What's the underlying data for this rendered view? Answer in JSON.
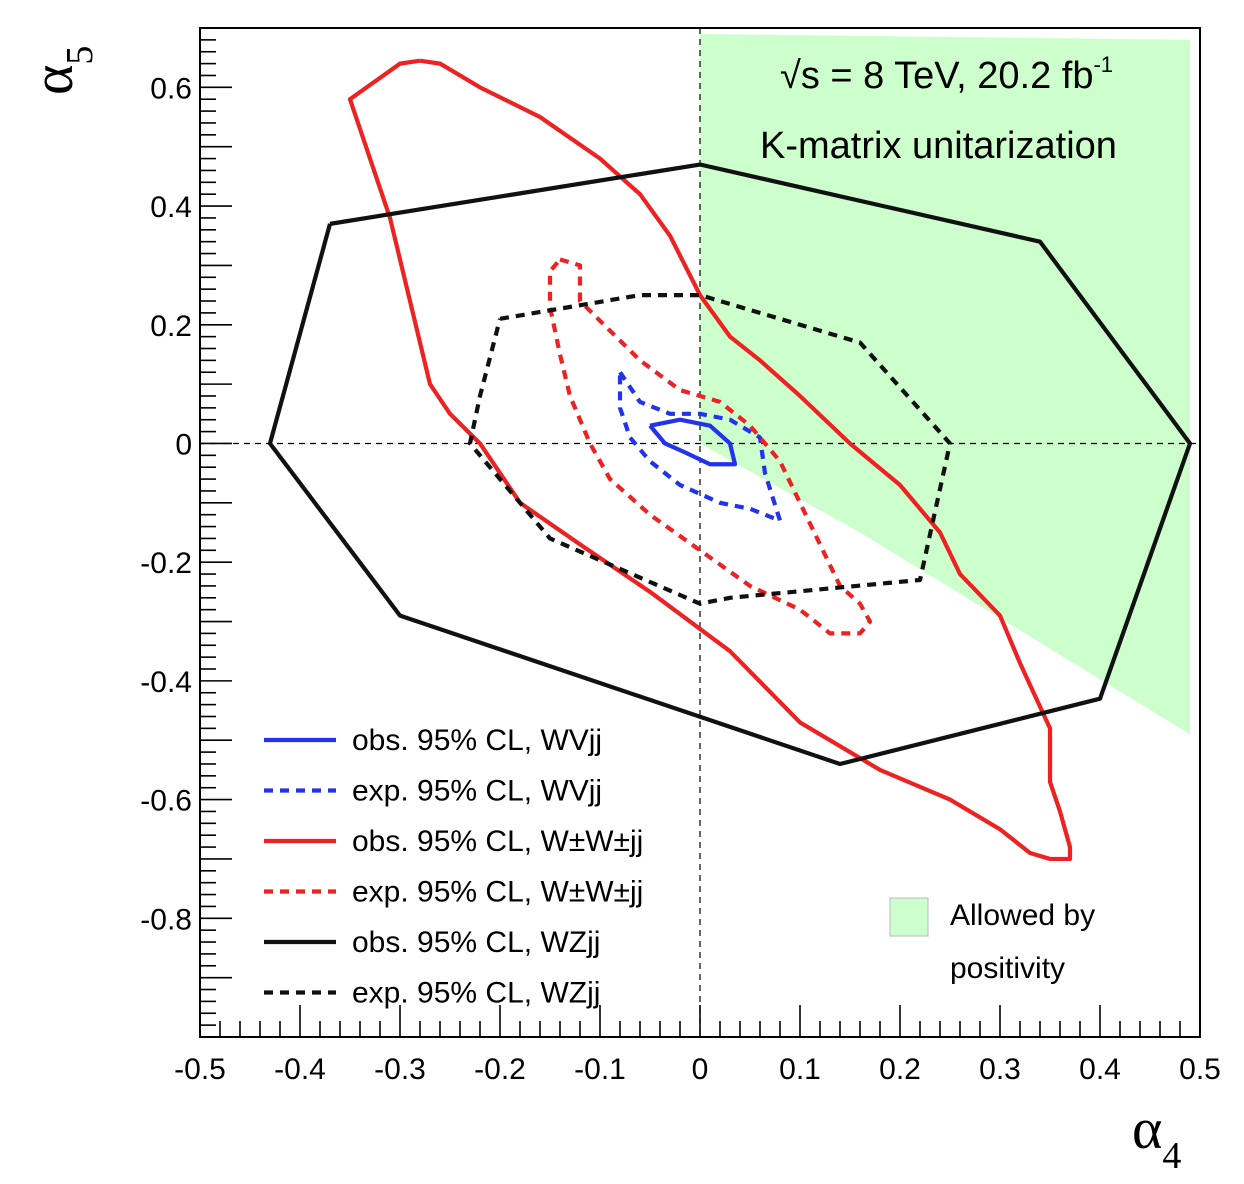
{
  "chart_data": {
    "type": "line",
    "title": "",
    "xlabel": "α",
    "xlabel_sub": "4",
    "ylabel": "α",
    "ylabel_sub": "5",
    "xlim": [
      -0.5,
      0.5
    ],
    "ylim": [
      -1.0,
      0.7
    ],
    "xticks": [
      {
        "v": -0.5,
        "label": "-0.5"
      },
      {
        "v": -0.4,
        "label": "-0.4"
      },
      {
        "v": -0.3,
        "label": "-0.3"
      },
      {
        "v": -0.2,
        "label": "-0.2"
      },
      {
        "v": -0.1,
        "label": "-0.1"
      },
      {
        "v": 0,
        "label": "0"
      },
      {
        "v": 0.1,
        "label": "0.1"
      },
      {
        "v": 0.2,
        "label": "0.2"
      },
      {
        "v": 0.3,
        "label": "0.3"
      },
      {
        "v": 0.4,
        "label": "0.4"
      },
      {
        "v": 0.5,
        "label": "0.5"
      }
    ],
    "yticks": [
      {
        "v": 0.6,
        "label": "0.6"
      },
      {
        "v": 0.4,
        "label": "0.4"
      },
      {
        "v": 0.2,
        "label": "0.2"
      },
      {
        "v": 0,
        "label": "0"
      },
      {
        "v": -0.2,
        "label": "-0.2"
      },
      {
        "v": -0.4,
        "label": "-0.4"
      },
      {
        "v": -0.6,
        "label": "-0.6"
      },
      {
        "v": -0.8,
        "label": "-0.8"
      }
    ],
    "annotations": {
      "energy_prefix": "√s = 8 TeV, 20.2 fb",
      "energy_sup": "-1",
      "method": "K-matrix unitarization",
      "allowed_line1": "Allowed by",
      "allowed_line2": "positivity"
    },
    "allowed_region": {
      "name": "Allowed by positivity",
      "color": "#ccffcc",
      "points": [
        [
          0.0,
          0.69
        ],
        [
          0.49,
          0.68
        ],
        [
          0.49,
          -0.49
        ],
        [
          0.16,
          -0.15
        ],
        [
          0.0,
          0.0
        ]
      ]
    },
    "series": [
      {
        "name": "obs. 95% CL, WVjj",
        "color": "#2233ee",
        "style": "solid",
        "points": [
          [
            -0.05,
            0.03
          ],
          [
            -0.02,
            0.04
          ],
          [
            0.01,
            0.03
          ],
          [
            0.03,
            0.0
          ],
          [
            0.035,
            -0.035
          ],
          [
            0.01,
            -0.035
          ],
          [
            -0.015,
            -0.015
          ],
          [
            -0.035,
            0.0
          ],
          [
            -0.05,
            0.03
          ]
        ]
      },
      {
        "name": "exp. 95% CL, WVjj",
        "color": "#2233ee",
        "style": "dashed",
        "points": [
          [
            -0.08,
            0.12
          ],
          [
            -0.06,
            0.07
          ],
          [
            -0.03,
            0.05
          ],
          [
            0.0,
            0.05
          ],
          [
            0.03,
            0.04
          ],
          [
            0.06,
            0.01
          ],
          [
            0.065,
            -0.05
          ],
          [
            0.08,
            -0.13
          ],
          [
            0.05,
            -0.11
          ],
          [
            0.02,
            -0.1
          ],
          [
            -0.02,
            -0.07
          ],
          [
            -0.05,
            -0.03
          ],
          [
            -0.07,
            0.01
          ],
          [
            -0.08,
            0.06
          ],
          [
            -0.08,
            0.12
          ]
        ]
      },
      {
        "name": "obs. 95% CL, W±W±jj",
        "color": "#ee2222",
        "style": "solid",
        "points": [
          [
            -0.28,
            0.645
          ],
          [
            -0.26,
            0.64
          ],
          [
            -0.22,
            0.6
          ],
          [
            -0.16,
            0.55
          ],
          [
            -0.1,
            0.48
          ],
          [
            -0.06,
            0.42
          ],
          [
            -0.03,
            0.35
          ],
          [
            0.0,
            0.25
          ],
          [
            0.03,
            0.18
          ],
          [
            0.06,
            0.14
          ],
          [
            0.1,
            0.08
          ],
          [
            0.15,
            0.0
          ],
          [
            0.2,
            -0.07
          ],
          [
            0.24,
            -0.15
          ],
          [
            0.26,
            -0.22
          ],
          [
            0.3,
            -0.29
          ],
          [
            0.32,
            -0.37
          ],
          [
            0.35,
            -0.48
          ],
          [
            0.35,
            -0.57
          ],
          [
            0.36,
            -0.62
          ],
          [
            0.37,
            -0.68
          ],
          [
            0.37,
            -0.7
          ],
          [
            0.35,
            -0.7
          ],
          [
            0.33,
            -0.69
          ],
          [
            0.3,
            -0.65
          ],
          [
            0.25,
            -0.6
          ],
          [
            0.18,
            -0.55
          ],
          [
            0.1,
            -0.47
          ],
          [
            0.03,
            -0.35
          ],
          [
            -0.05,
            -0.25
          ],
          [
            -0.12,
            -0.17
          ],
          [
            -0.18,
            -0.1
          ],
          [
            -0.22,
            0.0
          ],
          [
            -0.25,
            0.05
          ],
          [
            -0.27,
            0.1
          ],
          [
            -0.29,
            0.24
          ],
          [
            -0.31,
            0.38
          ],
          [
            -0.33,
            0.48
          ],
          [
            -0.35,
            0.58
          ],
          [
            -0.3,
            0.64
          ],
          [
            -0.28,
            0.645
          ]
        ]
      },
      {
        "name": "exp. 95% CL, W±W±jj",
        "color": "#ee2222",
        "style": "dashed",
        "points": [
          [
            -0.14,
            0.31
          ],
          [
            -0.12,
            0.3
          ],
          [
            -0.12,
            0.24
          ],
          [
            -0.09,
            0.19
          ],
          [
            -0.06,
            0.14
          ],
          [
            -0.02,
            0.09
          ],
          [
            0.02,
            0.07
          ],
          [
            0.05,
            0.03
          ],
          [
            0.08,
            -0.03
          ],
          [
            0.1,
            -0.1
          ],
          [
            0.12,
            -0.17
          ],
          [
            0.14,
            -0.24
          ],
          [
            0.16,
            -0.27
          ],
          [
            0.17,
            -0.3
          ],
          [
            0.16,
            -0.32
          ],
          [
            0.13,
            -0.32
          ],
          [
            0.1,
            -0.28
          ],
          [
            0.05,
            -0.24
          ],
          [
            0.0,
            -0.18
          ],
          [
            -0.05,
            -0.12
          ],
          [
            -0.09,
            -0.06
          ],
          [
            -0.11,
            0.0
          ],
          [
            -0.13,
            0.08
          ],
          [
            -0.14,
            0.15
          ],
          [
            -0.15,
            0.23
          ],
          [
            -0.15,
            0.29
          ],
          [
            -0.14,
            0.31
          ]
        ]
      },
      {
        "name": "obs. 95% CL, WZjj",
        "color": "#111111",
        "style": "solid",
        "points": [
          [
            -0.37,
            0.37
          ],
          [
            0.0,
            0.47
          ],
          [
            0.34,
            0.34
          ],
          [
            0.49,
            0.0
          ],
          [
            0.4,
            -0.43
          ],
          [
            0.14,
            -0.54
          ],
          [
            -0.3,
            -0.29
          ],
          [
            -0.43,
            0.0
          ],
          [
            -0.37,
            0.37
          ]
        ]
      },
      {
        "name": "exp. 95% CL, WZjj",
        "color": "#111111",
        "style": "dashed",
        "points": [
          [
            -0.2,
            0.21
          ],
          [
            -0.06,
            0.25
          ],
          [
            0.0,
            0.25
          ],
          [
            0.16,
            0.17
          ],
          [
            0.25,
            0.0
          ],
          [
            0.22,
            -0.23
          ],
          [
            0.03,
            -0.26
          ],
          [
            0.0,
            -0.27
          ],
          [
            -0.15,
            -0.16
          ],
          [
            -0.23,
            0.0
          ],
          [
            -0.22,
            0.08
          ],
          [
            -0.2,
            0.21
          ]
        ]
      }
    ],
    "legend": [
      {
        "label": "obs. 95% CL, WVjj",
        "color": "#2233ee",
        "style": "solid"
      },
      {
        "label": "exp. 95% CL, WVjj",
        "color": "#2233ee",
        "style": "dashed"
      },
      {
        "label": "obs. 95% CL, W±W±jj",
        "color": "#ee2222",
        "style": "solid"
      },
      {
        "label": "exp. 95% CL, W±W±jj",
        "color": "#ee2222",
        "style": "dashed"
      },
      {
        "label": "obs. 95% CL, WZjj",
        "color": "#111111",
        "style": "solid"
      },
      {
        "label": "exp. 95% CL, WZjj",
        "color": "#111111",
        "style": "dashed"
      }
    ],
    "legend_position": "bottom-left",
    "grid": false
  }
}
